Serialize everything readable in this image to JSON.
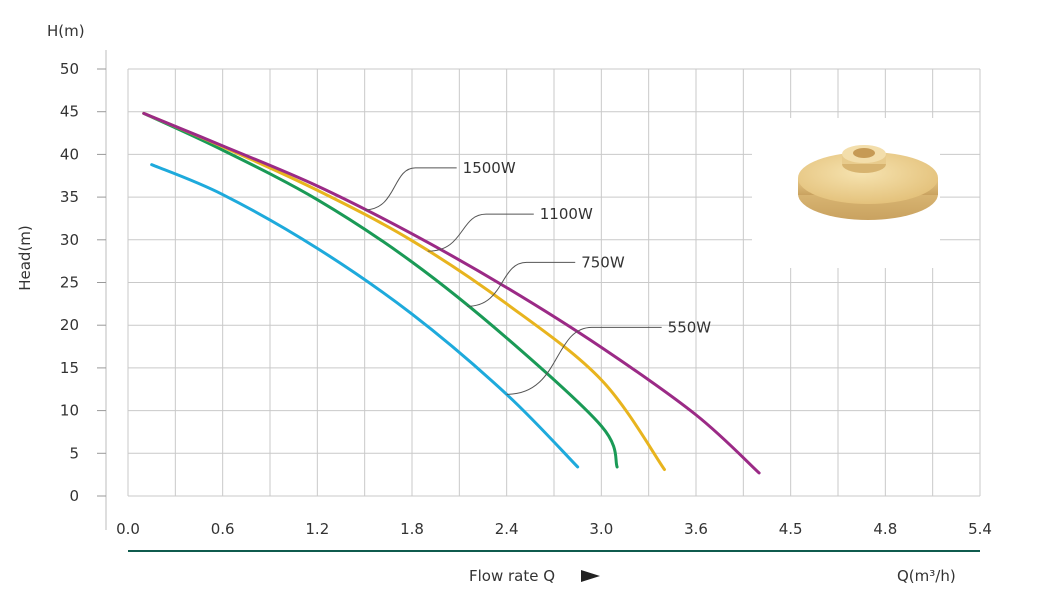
{
  "chart_data": {
    "type": "line",
    "ylabel_top": "H(m)",
    "ylabel": "Head(m)",
    "xlabel": "Flow rate Q",
    "xunit": "Q(m³/h)",
    "x_ticks": [
      "0.0",
      "0.6",
      "1.2",
      "1.8",
      "2.4",
      "3.0",
      "3.6",
      "4.5",
      "4.8",
      "5.4"
    ],
    "y_ticks": [
      "0",
      "5",
      "10",
      "15",
      "20",
      "25",
      "30",
      "35",
      "40",
      "45",
      "50"
    ],
    "xlim": [
      0,
      5.4
    ],
    "ylim": [
      0,
      50
    ],
    "grid": true,
    "series": [
      {
        "name": "1500W",
        "color": "#9b2a86",
        "x": [
          0.1,
          0.6,
          1.2,
          1.8,
          2.4,
          3.0,
          3.6,
          4.0
        ],
        "y": [
          44.8,
          41.0,
          36.3,
          30.7,
          24.4,
          17.4,
          9.5,
          2.7
        ]
      },
      {
        "name": "1100W",
        "color": "#e8b41e",
        "x": [
          0.1,
          0.6,
          1.2,
          1.8,
          2.4,
          3.0,
          3.4
        ],
        "y": [
          44.8,
          40.9,
          35.8,
          29.9,
          22.5,
          13.6,
          3.1
        ]
      },
      {
        "name": "750W",
        "color": "#1a9a56",
        "x": [
          0.1,
          0.6,
          1.2,
          1.8,
          2.4,
          3.0,
          3.1
        ],
        "y": [
          44.8,
          40.5,
          34.7,
          27.4,
          18.5,
          8.2,
          3.4
        ]
      },
      {
        "name": "550W",
        "color": "#1eaadc",
        "x": [
          0.15,
          0.6,
          1.2,
          1.8,
          2.4,
          2.85
        ],
        "y": [
          38.8,
          35.3,
          29.0,
          21.3,
          11.9,
          3.4
        ]
      }
    ],
    "annotations": [
      {
        "text": "1500W",
        "series": "1500W",
        "at_x": 1.5
      },
      {
        "text": "1100W",
        "series": "1100W",
        "at_x": 1.9
      },
      {
        "text": "750W",
        "series": "750W",
        "at_x": 2.15
      },
      {
        "text": "550W",
        "series": "550W",
        "at_x": 2.4
      }
    ],
    "axis_line_color": "#0f5b4d",
    "arrow_icon": "right-triangle-arrow-icon",
    "image_icon": "pump-impeller-icon"
  }
}
